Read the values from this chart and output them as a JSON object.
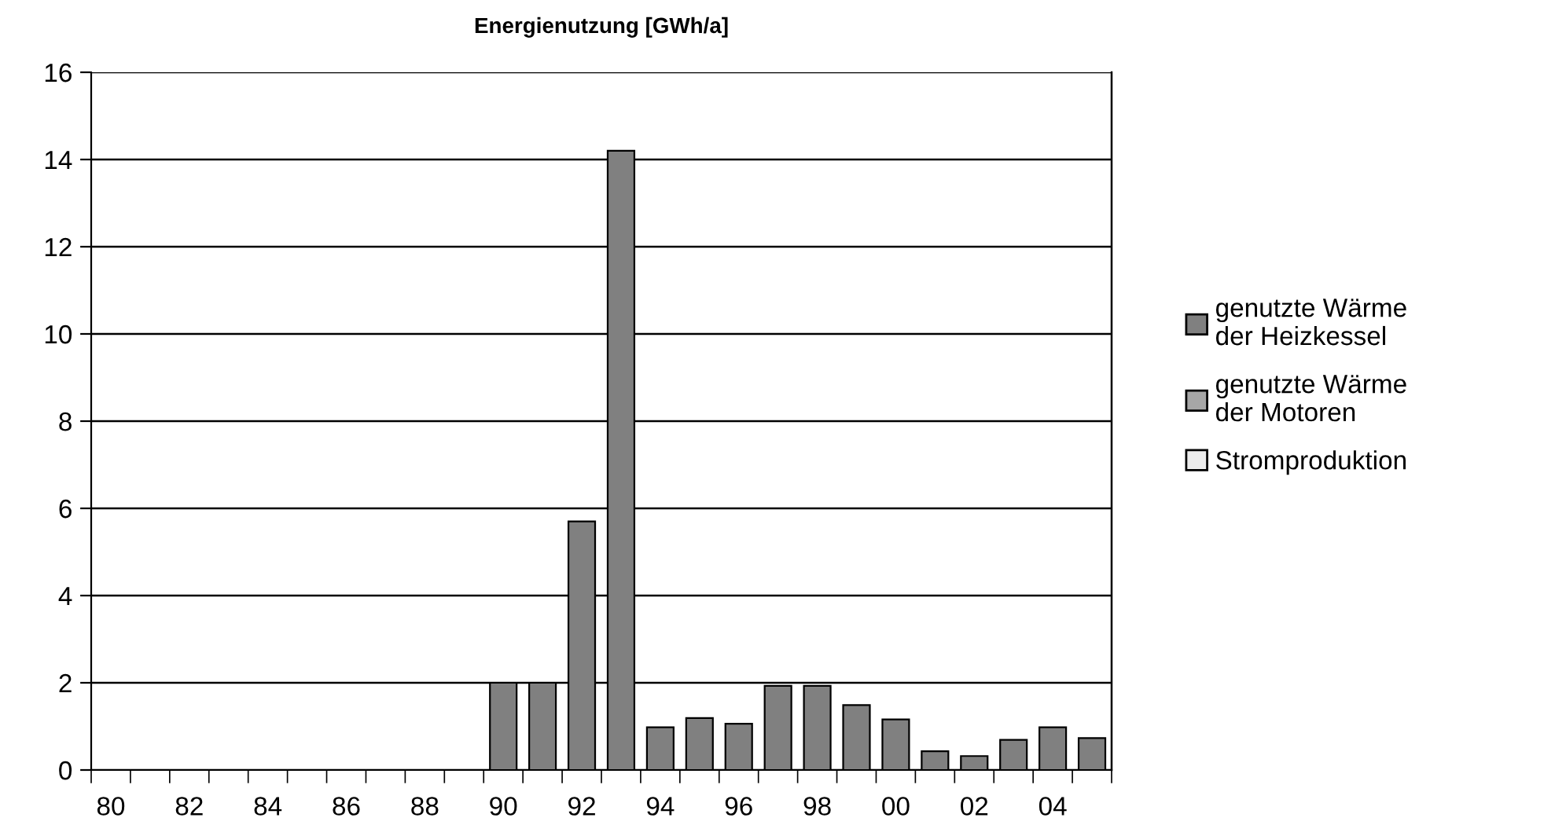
{
  "chart_data": {
    "type": "bar",
    "title": "Energienutzung [GWh/a]",
    "categories": [
      "80",
      null,
      "82",
      null,
      "84",
      null,
      "86",
      null,
      "88",
      null,
      "90",
      null,
      "92",
      null,
      "94",
      null,
      "96",
      null,
      "98",
      null,
      "00",
      null,
      "02",
      null,
      "04",
      null
    ],
    "series": [
      {
        "name": "genutzte Wärme\nder Heizkessel",
        "color": "#808080",
        "values": [
          null,
          null,
          null,
          null,
          null,
          null,
          null,
          null,
          null,
          null,
          2.0,
          2.0,
          5.7,
          14.2,
          0.98,
          1.19,
          1.06,
          1.93,
          1.93,
          1.49,
          1.16,
          0.43,
          0.32,
          0.69,
          0.98,
          0.73
        ]
      },
      {
        "name": "genutzte Wärme\nder Motoren",
        "color": "#a6a6a6",
        "values": [
          null,
          null,
          null,
          null,
          null,
          null,
          null,
          null,
          null,
          null,
          null,
          null,
          null,
          null,
          null,
          null,
          null,
          null,
          null,
          null,
          null,
          null,
          null,
          null,
          null,
          null
        ]
      },
      {
        "name": "Stromproduktion",
        "color": "#ececec",
        "values": [
          null,
          null,
          null,
          null,
          null,
          null,
          null,
          null,
          null,
          null,
          null,
          null,
          null,
          null,
          null,
          null,
          null,
          null,
          null,
          null,
          null,
          null,
          null,
          null,
          null,
          null
        ]
      }
    ],
    "ylim": [
      0,
      16
    ],
    "yticks": [
      0,
      2,
      4,
      6,
      8,
      10,
      12,
      14,
      16
    ],
    "grid": "y",
    "legend": "right"
  }
}
